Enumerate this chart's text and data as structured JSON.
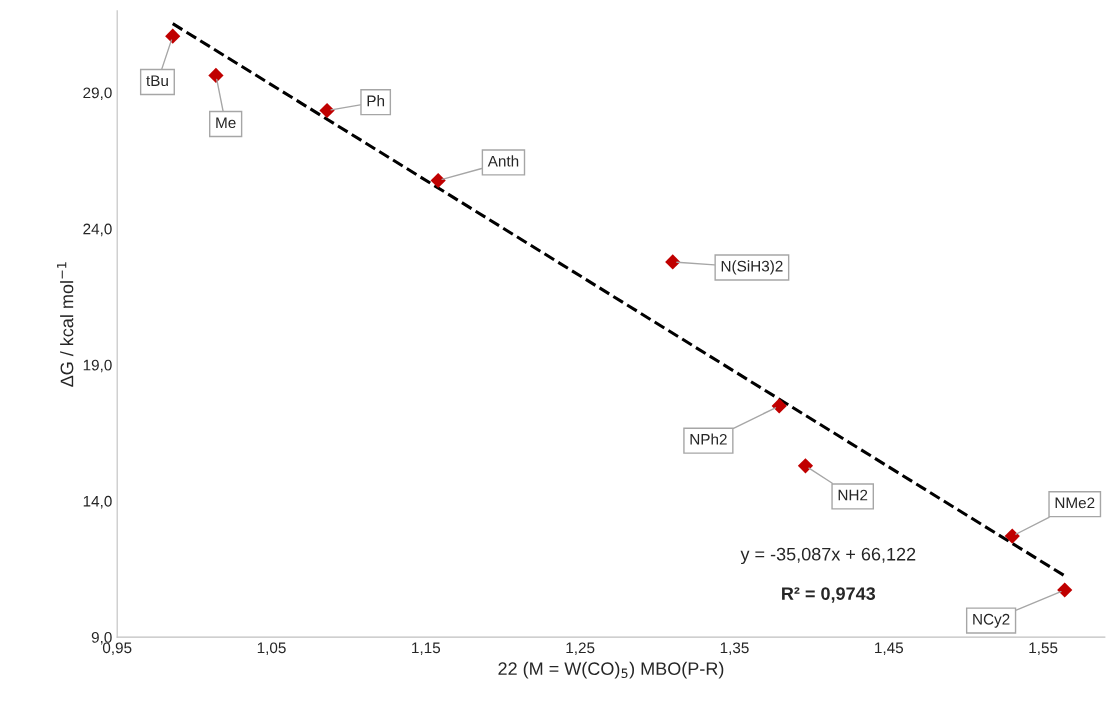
{
  "chart_data": {
    "type": "scatter",
    "xlabel": "22 (M = W(CO)$_{5}$) MBO(P-R)",
    "ylabel": "ΔG / kcal mol$^{−1}$",
    "xlim": [
      0.95,
      1.59
    ],
    "ylim": [
      9.0,
      32.0
    ],
    "xticks": [
      {
        "value": 0.95,
        "label": "0,95"
      },
      {
        "value": 1.05,
        "label": "1,05"
      },
      {
        "value": 1.15,
        "label": "1,15"
      },
      {
        "value": 1.25,
        "label": "1,25"
      },
      {
        "value": 1.35,
        "label": "1,35"
      },
      {
        "value": 1.45,
        "label": "1,45"
      },
      {
        "value": 1.55,
        "label": "1,55"
      }
    ],
    "yticks": [
      {
        "value": 9.0,
        "label": "9,0"
      },
      {
        "value": 14.0,
        "label": "14,0"
      },
      {
        "value": 19.0,
        "label": "19,0"
      },
      {
        "value": 24.0,
        "label": "24,0"
      },
      {
        "value": 29.0,
        "label": "29,0"
      }
    ],
    "grid": false,
    "legend": false,
    "series": [
      {
        "color": "#c00000",
        "marker": "diamond",
        "x": [
          0.986,
          1.014,
          1.086,
          1.158,
          1.31,
          1.379,
          1.396,
          1.53,
          1.564
        ],
        "values": [
          31.07,
          29.63,
          28.34,
          25.77,
          22.78,
          17.49,
          15.29,
          12.71,
          10.73
        ]
      },
      {
        "type": "line",
        "color": "#000000",
        "line_style": "dashed",
        "marker": "none",
        "x": [
          0.986,
          1.564
        ],
        "values": [
          31.53,
          11.25
        ]
      }
    ],
    "annotations": [
      {
        "text": "tBu",
        "x": 0.986,
        "y": 31.07
      },
      {
        "text": "Me",
        "x": 1.014,
        "y": 29.63
      },
      {
        "text": "Ph",
        "x": 1.086,
        "y": 28.34
      },
      {
        "text": "Anth",
        "x": 1.158,
        "y": 25.77
      },
      {
        "text": "N(SiH3)2",
        "x": 1.31,
        "y": 22.78
      },
      {
        "text": "NPh2",
        "x": 1.379,
        "y": 17.49
      },
      {
        "text": "NH2",
        "x": 1.396,
        "y": 15.29
      },
      {
        "text": "NMe2",
        "x": 1.53,
        "y": 12.71
      },
      {
        "text": "NCy2",
        "x": 1.564,
        "y": 10.73
      },
      "y = -35,087x + 66,122",
      "R² = 0,9743"
    ]
  }
}
